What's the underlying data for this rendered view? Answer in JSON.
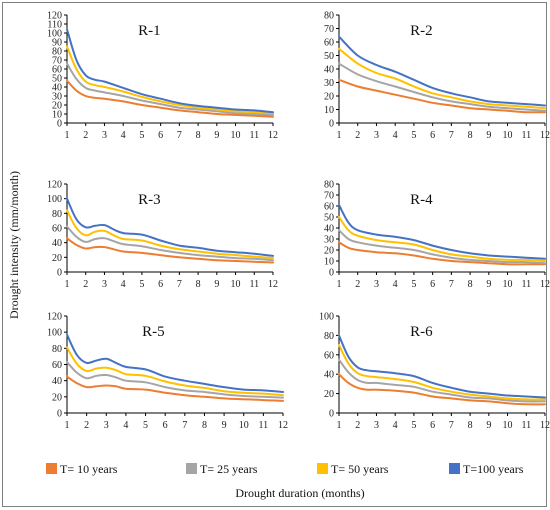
{
  "chart_data": {
    "type": "line",
    "ylabel": "Drought intensity (mm/month)",
    "xlabel": "Drought duration (months)",
    "x": [
      1,
      2,
      3,
      4,
      5,
      6,
      7,
      8,
      9,
      10,
      11,
      12
    ],
    "xlim": [
      1,
      12
    ],
    "legend_position": "bottom",
    "grid": false,
    "series_styles": [
      {
        "name": "T= 10 years",
        "color": "#ed7d31"
      },
      {
        "name": "T= 25 years",
        "color": "#a5a5a5"
      },
      {
        "name": "T= 50 years",
        "color": "#ffc000"
      },
      {
        "name": "T=100 years",
        "color": "#4472c4"
      }
    ],
    "panels": [
      {
        "title": "R-1",
        "ylim": [
          0,
          120
        ],
        "yticks": [
          0,
          10,
          20,
          30,
          40,
          50,
          60,
          70,
          80,
          90,
          100,
          110,
          120
        ],
        "xticks": [
          1,
          2,
          3,
          4,
          5,
          6,
          7,
          8,
          9,
          10,
          11,
          12
        ],
        "series": [
          {
            "name": "T= 10 years",
            "x": [
              1,
              1.5,
              2,
              2.5,
              3,
              4,
              5,
              6,
              7,
              8,
              9,
              10,
              11,
              12
            ],
            "values": [
              47,
              36,
              30,
              28,
              27,
              24,
              20,
              17,
              14,
              12,
              10,
              9,
              8,
              7
            ]
          },
          {
            "name": "T= 25 years",
            "x": [
              1,
              1.5,
              2,
              2.5,
              3,
              4,
              5,
              6,
              7,
              8,
              9,
              10,
              11,
              12
            ],
            "values": [
              66,
              49,
              39,
              36,
              34,
              30,
              25,
              21,
              17,
              15,
              13,
              11,
              10,
              9
            ]
          },
          {
            "name": "T= 50 years",
            "x": [
              1,
              1.5,
              2,
              2.5,
              3,
              4,
              5,
              6,
              7,
              8,
              9,
              10,
              11,
              12
            ],
            "values": [
              85,
              60,
              46,
              42,
              40,
              35,
              29,
              24,
              20,
              17,
              15,
              13,
              12,
              11
            ]
          },
          {
            "name": "T=100 years",
            "x": [
              1,
              1.5,
              2,
              2.5,
              3,
              4,
              5,
              6,
              7,
              8,
              9,
              10,
              11,
              12
            ],
            "values": [
              104,
              70,
              53,
              48,
              46,
              39,
              32,
              27,
              22,
              19,
              17,
              15,
              14,
              12
            ]
          }
        ]
      },
      {
        "title": "R-2",
        "ylim": [
          0,
          80
        ],
        "yticks": [
          0,
          10,
          20,
          30,
          40,
          50,
          60,
          70,
          80
        ],
        "xticks": [
          1,
          2,
          3,
          4,
          5,
          6,
          7,
          8,
          9,
          10,
          11,
          12
        ],
        "series": [
          {
            "name": "T= 10 years",
            "x": [
              1,
              2,
              3,
              4,
              5,
              6,
              7,
              8,
              9,
              10,
              11,
              12
            ],
            "values": [
              32,
              27,
              24,
              21,
              18,
              15,
              13,
              11,
              10,
              9,
              8,
              8
            ]
          },
          {
            "name": "T= 25 years",
            "x": [
              1,
              2,
              3,
              4,
              5,
              6,
              7,
              8,
              9,
              10,
              11,
              12
            ],
            "values": [
              44,
              36,
              31,
              27,
              23,
              19,
              16,
              14,
              12,
              11,
              10,
              9
            ]
          },
          {
            "name": "T= 50 years",
            "x": [
              1,
              2,
              3,
              4,
              5,
              6,
              7,
              8,
              9,
              10,
              11,
              12
            ],
            "values": [
              55,
              44,
              37,
              33,
              27,
              22,
              19,
              16,
              14,
              13,
              12,
              11
            ]
          },
          {
            "name": "T=100 years",
            "x": [
              1,
              2,
              3,
              4,
              5,
              6,
              7,
              8,
              9,
              10,
              11,
              12
            ],
            "values": [
              64,
              50,
              43,
              38,
              32,
              26,
              22,
              19,
              16,
              15,
              14,
              13
            ]
          }
        ]
      },
      {
        "title": "R-3",
        "ylim": [
          0,
          120
        ],
        "yticks": [
          0,
          20,
          40,
          60,
          80,
          100,
          120
        ],
        "xticks": [
          1,
          2,
          3,
          4,
          5,
          6,
          7,
          8,
          9,
          10,
          11,
          12
        ],
        "series": [
          {
            "name": "T= 10 years",
            "x": [
              1,
              1.5,
              2,
              2.5,
              3,
              3.5,
              4,
              5,
              6,
              7,
              8,
              9,
              10,
              11,
              12
            ],
            "values": [
              46,
              37,
              32,
              34,
              34,
              31,
              28,
              26,
              23,
              20,
              18,
              16,
              15,
              14,
              13
            ]
          },
          {
            "name": "T= 25 years",
            "x": [
              1,
              1.5,
              2,
              2.5,
              3,
              3.5,
              4,
              5,
              6,
              7,
              8,
              9,
              10,
              11,
              12
            ],
            "values": [
              62,
              48,
              41,
              45,
              46,
              42,
              38,
              35,
              30,
              26,
              23,
              21,
              19,
              18,
              16
            ]
          },
          {
            "name": "T= 50 years",
            "x": [
              1,
              1.5,
              2,
              2.5,
              3,
              3.5,
              4,
              5,
              6,
              7,
              8,
              9,
              10,
              11,
              12
            ],
            "values": [
              84,
              60,
              50,
              55,
              56,
              50,
              45,
              43,
              36,
              31,
              28,
              25,
              23,
              21,
              19
            ]
          },
          {
            "name": "T=100 years",
            "x": [
              1,
              1.5,
              2,
              2.5,
              3,
              3.5,
              4,
              5,
              6,
              7,
              8,
              9,
              10,
              11,
              12
            ],
            "values": [
              100,
              72,
              61,
              63,
              64,
              58,
              53,
              51,
              43,
              36,
              33,
              29,
              27,
              25,
              22
            ]
          }
        ]
      },
      {
        "title": "R-4",
        "ylim": [
          0,
          80
        ],
        "yticks": [
          0,
          10,
          20,
          30,
          40,
          50,
          60,
          70,
          80
        ],
        "xticks": [
          1,
          2,
          3,
          4,
          5,
          6,
          7,
          8,
          9,
          10,
          11,
          12
        ],
        "series": [
          {
            "name": "T= 10 years",
            "x": [
              1,
              1.5,
              2,
              3,
              4,
              5,
              6,
              7,
              8,
              9,
              10,
              11,
              12
            ],
            "values": [
              27,
              22,
              20,
              18,
              17,
              15,
              12,
              10,
              9,
              8,
              7,
              7,
              7
            ]
          },
          {
            "name": "T= 25 years",
            "x": [
              1,
              1.5,
              2,
              3,
              4,
              5,
              6,
              7,
              8,
              9,
              10,
              11,
              12
            ],
            "values": [
              38,
              30,
              27,
              24,
              22,
              20,
              16,
              13,
              11,
              10,
              9,
              9,
              8
            ]
          },
          {
            "name": "T= 50 years",
            "x": [
              1,
              1.5,
              2,
              3,
              4,
              5,
              6,
              7,
              8,
              9,
              10,
              11,
              12
            ],
            "values": [
              50,
              38,
              33,
              29,
              27,
              25,
              20,
              16,
              14,
              12,
              11,
              11,
              10
            ]
          },
          {
            "name": "T=100 years",
            "x": [
              1,
              1.5,
              2,
              3,
              4,
              5,
              6,
              7,
              8,
              9,
              10,
              11,
              12
            ],
            "values": [
              61,
              45,
              38,
              34,
              32,
              29,
              24,
              20,
              17,
              15,
              14,
              13,
              12
            ]
          }
        ]
      },
      {
        "title": "R-5",
        "ylim": [
          0,
          120
        ],
        "yticks": [
          0,
          20,
          40,
          60,
          80,
          100,
          120
        ],
        "xticks": [
          1,
          2,
          3,
          4,
          5,
          6,
          7,
          8,
          9,
          10,
          11,
          12
        ],
        "series": [
          {
            "name": "T= 10 years",
            "x": [
              1,
              1.5,
              2,
              2.5,
              3,
              3.5,
              4,
              5,
              6,
              7,
              8,
              9,
              10,
              11,
              12
            ],
            "values": [
              45,
              37,
              32,
              33,
              34,
              33,
              30,
              29,
              25,
              22,
              20,
              18,
              17,
              16,
              15
            ]
          },
          {
            "name": "T= 25 years",
            "x": [
              1,
              1.5,
              2,
              2.5,
              3,
              3.5,
              4,
              5,
              6,
              7,
              8,
              9,
              10,
              11,
              12
            ],
            "values": [
              63,
              50,
              43,
              46,
              47,
              44,
              40,
              38,
              32,
              28,
              26,
              23,
              21,
              20,
              19
            ]
          },
          {
            "name": "T= 50 years",
            "x": [
              1,
              1.5,
              2,
              2.5,
              3,
              3.5,
              4,
              5,
              6,
              7,
              8,
              9,
              10,
              11,
              12
            ],
            "values": [
              81,
              61,
              52,
              55,
              56,
              53,
              48,
              46,
              39,
              34,
              31,
              27,
              25,
              24,
              22
            ]
          },
          {
            "name": "T=100 years",
            "x": [
              1,
              1.5,
              2,
              2.5,
              3,
              3.5,
              4,
              5,
              6,
              7,
              8,
              9,
              10,
              11,
              12
            ],
            "values": [
              97,
              72,
              62,
              65,
              67,
              62,
              57,
              54,
              45,
              40,
              36,
              32,
              29,
              28,
              26
            ]
          }
        ]
      },
      {
        "title": "R-6",
        "ylim": [
          0,
          100
        ],
        "yticks": [
          0,
          20,
          40,
          60,
          80,
          100
        ],
        "xticks": [
          1,
          2,
          3,
          4,
          5,
          6,
          7,
          8,
          9,
          10,
          11,
          12
        ],
        "series": [
          {
            "name": "T= 10 years",
            "x": [
              1,
              1.5,
              2,
              2.5,
              3,
              4,
              5,
              6,
              7,
              8,
              9,
              10,
              11,
              12
            ],
            "values": [
              40,
              31,
              26,
              24,
              24,
              23,
              21,
              17,
              15,
              13,
              12,
              10,
              9,
              9
            ]
          },
          {
            "name": "T= 25 years",
            "x": [
              1,
              1.5,
              2,
              2.5,
              3,
              4,
              5,
              6,
              7,
              8,
              9,
              10,
              11,
              12
            ],
            "values": [
              55,
              42,
              34,
              31,
              31,
              29,
              27,
              22,
              19,
              16,
              15,
              13,
              12,
              12
            ]
          },
          {
            "name": "T= 50 years",
            "x": [
              1,
              1.5,
              2,
              2.5,
              3,
              4,
              5,
              6,
              7,
              8,
              9,
              10,
              11,
              12
            ],
            "values": [
              70,
              51,
              41,
              38,
              37,
              35,
              32,
              26,
              22,
              19,
              17,
              15,
              14,
              14
            ]
          },
          {
            "name": "T=100 years",
            "x": [
              1,
              1.5,
              2,
              2.5,
              3,
              4,
              5,
              6,
              7,
              8,
              9,
              10,
              11,
              12
            ],
            "values": [
              80,
              58,
              47,
              44,
              43,
              41,
              38,
              31,
              26,
              22,
              20,
              18,
              17,
              16
            ]
          }
        ]
      }
    ]
  }
}
